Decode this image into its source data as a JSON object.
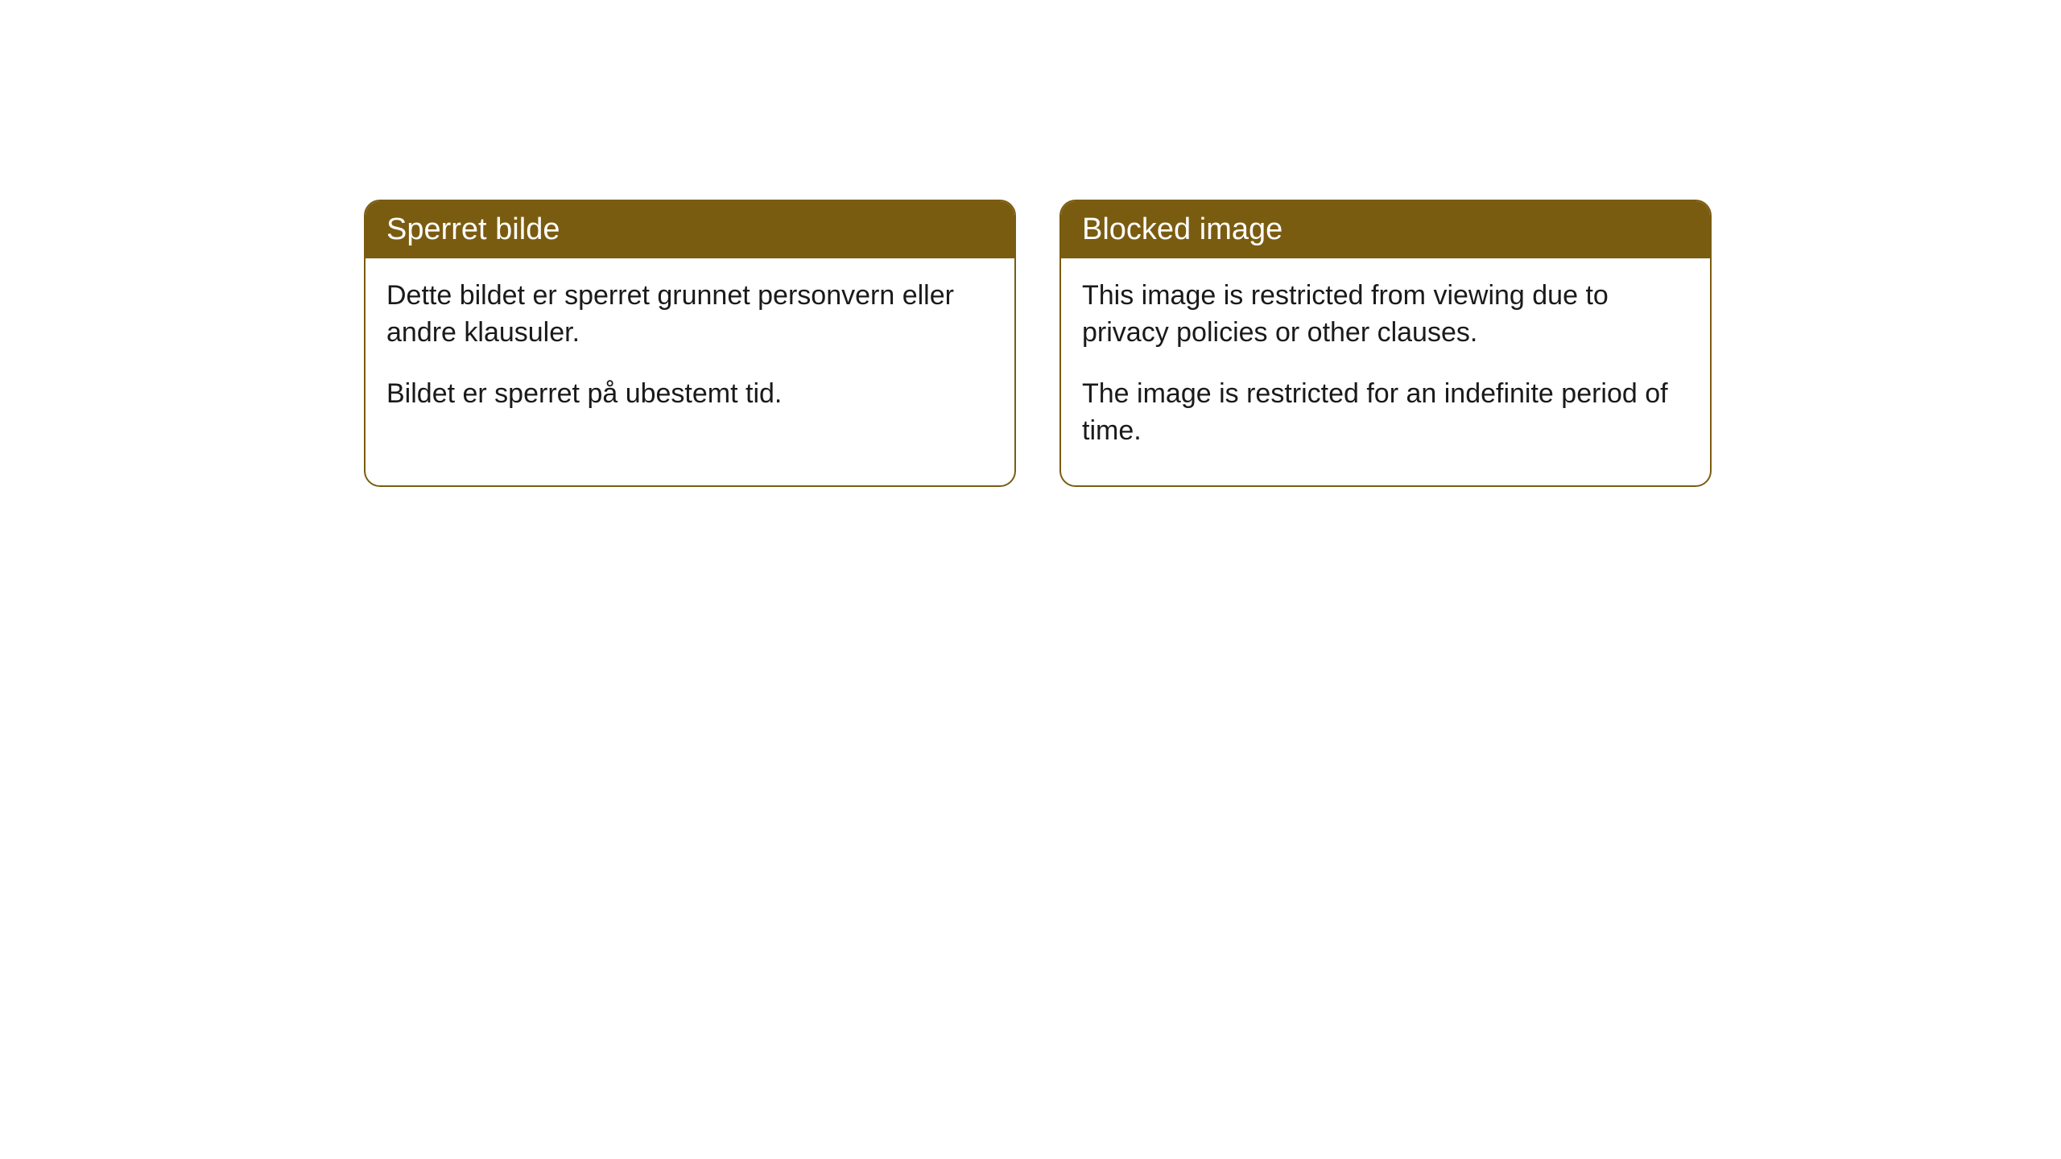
{
  "cards": [
    {
      "title": "Sperret bilde",
      "paragraph1": "Dette bildet er sperret grunnet personvern eller andre klausuler.",
      "paragraph2": "Bildet er sperret på ubestemt tid."
    },
    {
      "title": "Blocked image",
      "paragraph1": "This image is restricted from viewing due to privacy policies or other clauses.",
      "paragraph2": "The image is restricted for an indefinite period of time."
    }
  ],
  "styling": {
    "header_background": "#7a5c11",
    "header_text_color": "#ffffff",
    "border_color": "#7a5c11",
    "body_text_color": "#1a1a1a",
    "border_radius": 20,
    "header_fontsize": 38,
    "body_fontsize": 34
  }
}
